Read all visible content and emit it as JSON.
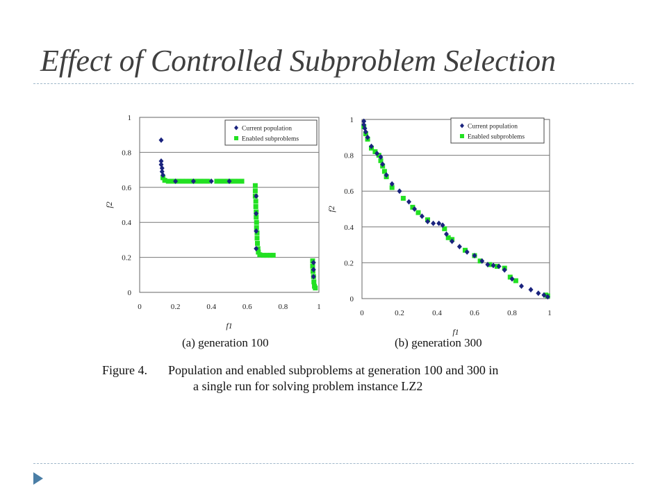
{
  "slide": {
    "title": "Effect of Controlled Subproblem Selection",
    "figure_caption_label": "Figure 4.",
    "figure_caption_line1": "Population and enabled subproblems at generation 100 and 300 in",
    "figure_caption_line2": "a single run for solving problem instance LZ2"
  },
  "colors": {
    "current_population": "#1a237e",
    "enabled_subproblems": "#22e022",
    "grid": "#777777",
    "accent": "#4a7ea6"
  },
  "chart_data": [
    {
      "type": "scatter",
      "caption": "(a) generation 100",
      "xlabel": "f1",
      "ylabel": "f2",
      "xlim": [
        0,
        1
      ],
      "ylim": [
        0,
        1
      ],
      "xticks": [
        "0",
        "0.2",
        "0.4",
        "0.6",
        "0.8",
        "1"
      ],
      "yticks": [
        "0",
        "0.2",
        "0.4",
        "0.6",
        "0.8",
        "1"
      ],
      "grid": "horizontal",
      "legend_position": "top-right",
      "series": [
        {
          "name": "Current population",
          "marker": "diamond",
          "points": [
            [
              0.12,
              0.87
            ],
            [
              0.12,
              0.75
            ],
            [
              0.12,
              0.73
            ],
            [
              0.125,
              0.71
            ],
            [
              0.125,
              0.69
            ],
            [
              0.13,
              0.67
            ],
            [
              0.2,
              0.635
            ],
            [
              0.3,
              0.635
            ],
            [
              0.4,
              0.635
            ],
            [
              0.5,
              0.635
            ],
            [
              0.65,
              0.55
            ],
            [
              0.65,
              0.45
            ],
            [
              0.65,
              0.35
            ],
            [
              0.65,
              0.25
            ],
            [
              0.97,
              0.17
            ],
            [
              0.97,
              0.13
            ],
            [
              0.97,
              0.09
            ]
          ]
        },
        {
          "name": "Enabled subproblems",
          "marker": "square",
          "points": [
            [
              0.13,
              0.655
            ],
            [
              0.14,
              0.64
            ],
            [
              0.16,
              0.635
            ],
            [
              0.18,
              0.635
            ],
            [
              0.2,
              0.635
            ],
            [
              0.22,
              0.635
            ],
            [
              0.24,
              0.635
            ],
            [
              0.26,
              0.635
            ],
            [
              0.28,
              0.635
            ],
            [
              0.3,
              0.635
            ],
            [
              0.32,
              0.635
            ],
            [
              0.34,
              0.635
            ],
            [
              0.36,
              0.635
            ],
            [
              0.38,
              0.635
            ],
            [
              0.43,
              0.635
            ],
            [
              0.45,
              0.635
            ],
            [
              0.47,
              0.635
            ],
            [
              0.49,
              0.635
            ],
            [
              0.51,
              0.635
            ],
            [
              0.53,
              0.635
            ],
            [
              0.55,
              0.635
            ],
            [
              0.57,
              0.635
            ],
            [
              0.645,
              0.61
            ],
            [
              0.645,
              0.58
            ],
            [
              0.645,
              0.55
            ],
            [
              0.648,
              0.52
            ],
            [
              0.648,
              0.49
            ],
            [
              0.65,
              0.46
            ],
            [
              0.65,
              0.43
            ],
            [
              0.652,
              0.4
            ],
            [
              0.652,
              0.37
            ],
            [
              0.655,
              0.34
            ],
            [
              0.655,
              0.31
            ],
            [
              0.657,
              0.28
            ],
            [
              0.66,
              0.25
            ],
            [
              0.662,
              0.23
            ],
            [
              0.67,
              0.215
            ],
            [
              0.69,
              0.212
            ],
            [
              0.71,
              0.212
            ],
            [
              0.73,
              0.212
            ],
            [
              0.745,
              0.212
            ],
            [
              0.965,
              0.18
            ],
            [
              0.965,
              0.15
            ],
            [
              0.967,
              0.12
            ],
            [
              0.97,
              0.09
            ],
            [
              0.972,
              0.06
            ],
            [
              0.975,
              0.035
            ],
            [
              0.98,
              0.025
            ]
          ]
        }
      ]
    },
    {
      "type": "scatter",
      "caption": "(b) generation 300",
      "xlabel": "f1",
      "ylabel": "f2",
      "xlim": [
        0,
        1
      ],
      "ylim": [
        0,
        1
      ],
      "xticks": [
        "0",
        "0.2",
        "0.4",
        "0.6",
        "0.8",
        "1"
      ],
      "yticks": [
        "0",
        "0.2",
        "0.4",
        "0.6",
        "0.8",
        "1"
      ],
      "grid": "horizontal",
      "legend_position": "top-right",
      "series": [
        {
          "name": "Current population",
          "marker": "diamond",
          "points": [
            [
              0.01,
              0.99
            ],
            [
              0.01,
              0.97
            ],
            [
              0.015,
              0.95
            ],
            [
              0.02,
              0.93
            ],
            [
              0.03,
              0.9
            ],
            [
              0.05,
              0.85
            ],
            [
              0.08,
              0.81
            ],
            [
              0.1,
              0.79
            ],
            [
              0.11,
              0.75
            ],
            [
              0.13,
              0.69
            ],
            [
              0.16,
              0.64
            ],
            [
              0.2,
              0.6
            ],
            [
              0.25,
              0.54
            ],
            [
              0.28,
              0.5
            ],
            [
              0.32,
              0.46
            ],
            [
              0.35,
              0.43
            ],
            [
              0.38,
              0.42
            ],
            [
              0.41,
              0.42
            ],
            [
              0.43,
              0.41
            ],
            [
              0.45,
              0.36
            ],
            [
              0.48,
              0.32
            ],
            [
              0.52,
              0.29
            ],
            [
              0.56,
              0.26
            ],
            [
              0.6,
              0.24
            ],
            [
              0.64,
              0.21
            ],
            [
              0.67,
              0.19
            ],
            [
              0.7,
              0.185
            ],
            [
              0.73,
              0.18
            ],
            [
              0.76,
              0.16
            ],
            [
              0.8,
              0.11
            ],
            [
              0.85,
              0.07
            ],
            [
              0.9,
              0.05
            ],
            [
              0.94,
              0.03
            ],
            [
              0.97,
              0.02
            ],
            [
              0.99,
              0.01
            ]
          ]
        },
        {
          "name": "Enabled subproblems",
          "marker": "square",
          "points": [
            [
              0.01,
              0.96
            ],
            [
              0.02,
              0.92
            ],
            [
              0.03,
              0.89
            ],
            [
              0.05,
              0.84
            ],
            [
              0.07,
              0.82
            ],
            [
              0.09,
              0.8
            ],
            [
              0.1,
              0.77
            ],
            [
              0.11,
              0.74
            ],
            [
              0.12,
              0.71
            ],
            [
              0.13,
              0.68
            ],
            [
              0.16,
              0.62
            ],
            [
              0.22,
              0.56
            ],
            [
              0.27,
              0.51
            ],
            [
              0.3,
              0.48
            ],
            [
              0.35,
              0.44
            ],
            [
              0.44,
              0.39
            ],
            [
              0.46,
              0.34
            ],
            [
              0.48,
              0.33
            ],
            [
              0.55,
              0.27
            ],
            [
              0.6,
              0.24
            ],
            [
              0.63,
              0.21
            ],
            [
              0.68,
              0.19
            ],
            [
              0.72,
              0.18
            ],
            [
              0.76,
              0.17
            ],
            [
              0.79,
              0.12
            ],
            [
              0.82,
              0.1
            ],
            [
              0.98,
              0.02
            ],
            [
              0.99,
              0.015
            ]
          ]
        }
      ]
    }
  ]
}
